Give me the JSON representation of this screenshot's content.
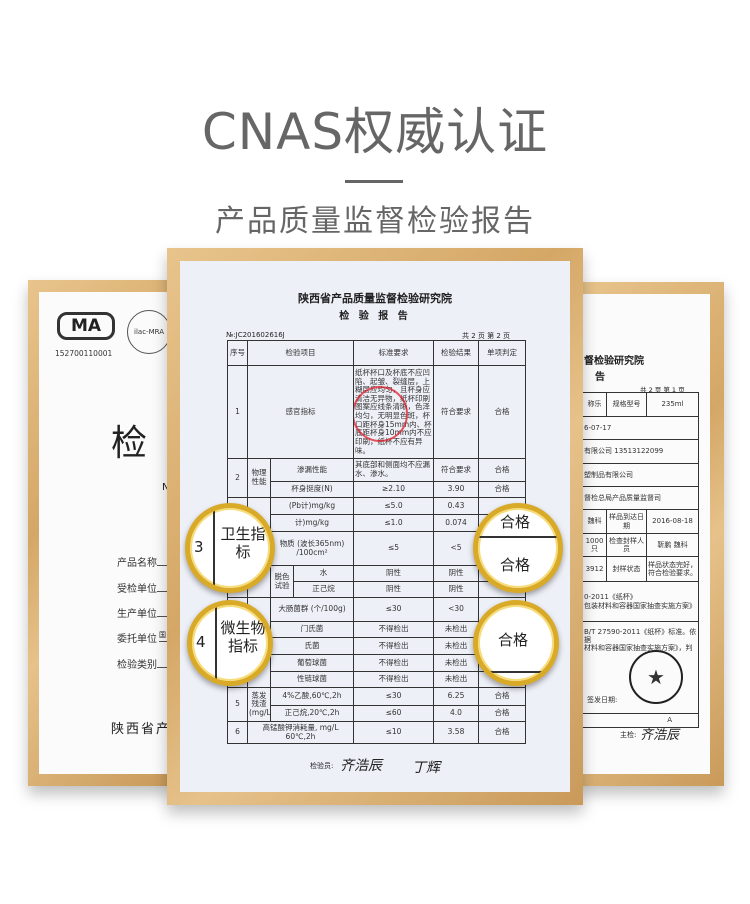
{
  "header": {
    "title": "CNAS权威认证",
    "subtitle": "产品质量监督检验报告"
  },
  "left_doc": {
    "logo_text": "MA",
    "cert_number": "152700110001",
    "seal_text": "ilac-MRA",
    "big_char": "检",
    "no_prefix": "N",
    "fields": [
      "产品名称",
      "受检单位",
      "生产单位",
      "委托单位",
      "检验类别"
    ],
    "client_fragment": "国",
    "footer": "陕西省产"
  },
  "center_doc": {
    "institute": "陕西省产品质量监督检验研究院",
    "report_title": "检 验 报 告",
    "report_no": "№:JC201602616J",
    "page_info": "共 2 页 第 2 页",
    "headers": [
      "序号",
      "检验项目",
      "标准要求",
      "检验结果",
      "单项判定"
    ],
    "r1": {
      "no": "1",
      "item": "感官指标",
      "req": "纸杯杯口及杯底不应凹陷、起皱、裂缝层，上糊层应均匀，且杯身应清洁无异物，纸杯印刷图案应线条清晰，色泽均匀，无明显色斑，杯口距杯身15mm内、杯底距杯身10mm内不应印刷，纸杯不应有异味。",
      "res": "符合要求",
      "verdict": "合格"
    },
    "r2": {
      "no": "2",
      "group": "物理性能",
      "a_item": "渗漏性能",
      "a_req": "其底部和侧面均不应漏水、渗水。",
      "a_res": "符合要求",
      "a_verdict": "合格",
      "b_item": "杯身挺度(N)",
      "b_req": "≥2.10",
      "b_res": "3.90",
      "b_verdict": "合格"
    },
    "r3": {
      "no": "3",
      "group": "卫生指标",
      "pb_item": "(Pb计)mg/kg",
      "pb_req": "≤5.0",
      "pb_res": "0.43",
      "as_item": "计)mg/kg",
      "as_req": "≤1.0",
      "as_res": "0.074",
      "fl_item": "物质 (波长365nm) /100cm²",
      "fl_req": "≤5",
      "fl_res": "<5",
      "dc_group": "脱色试验",
      "dc_water": "水",
      "dc_hexane": "正己烷",
      "neg": "阴性",
      "verdict": "合格"
    },
    "r4": {
      "no": "4",
      "group": "微生物指标",
      "coli_item": "大肠菌群 (个/100g)",
      "coli_req": "≤30",
      "coli_res": "<30",
      "items": [
        "门氏菌",
        "氏菌",
        "葡萄球菌",
        "性链球菌"
      ],
      "req": "不得检出",
      "res": "未检出",
      "verdict": "合格"
    },
    "r5": {
      "no": "5",
      "group": "蒸发残渣 (mg/L)",
      "a_item": "4%乙酸,60℃,2h",
      "a_req": "≤30",
      "a_res": "6.25",
      "b_item": "正己烷,20℃,2h",
      "b_req": "≤60",
      "b_res": "4.0",
      "verdict": "合格"
    },
    "r6": {
      "no": "6",
      "item": "高锰酸钾消耗量, mg/L 60℃,2h",
      "req": "≤10",
      "res": "3.58",
      "verdict": "合格"
    },
    "inspector_label": "检验员:",
    "signature1": "齐浩辰",
    "signature2": "丁辉"
  },
  "magnifiers": {
    "m1_no": "3",
    "m1_text": "卫生指标",
    "m2_no": "4",
    "m2_text": "微生物指标",
    "pass": "合格"
  },
  "right_doc": {
    "institute_fragment": "督检验研究院",
    "title_fragment": "告",
    "page_info": "共 2 页 第 1 页",
    "rows": [
      [
        "称乐",
        "规格型号",
        "235ml"
      ],
      [
        "6-07-17"
      ],
      [
        "有限公司",
        "13513122099"
      ],
      [
        "塑制品有限公司"
      ],
      [
        "督检总局产品质量监督司"
      ],
      [
        "魏科",
        "样品到达日期",
        "2016-08-18"
      ],
      [
        "1000只",
        "检查封样人员",
        "靳鹏 魏科"
      ],
      [
        "3912",
        "封样状态",
        "样品状态完好，符合检验要求。"
      ]
    ],
    "basis1": "0-2011《纸杯》",
    "basis2": "包装材料和容器国家抽查实施方案》",
    "concl1": "B/T 27590-2011《纸杯》标准。依据",
    "concl2": "材料和容器国家抽查实施方案》，判",
    "issue_date": "签发日期:",
    "mark": "A",
    "chief_label": "主检:",
    "chief_sig": "齐浩辰"
  }
}
